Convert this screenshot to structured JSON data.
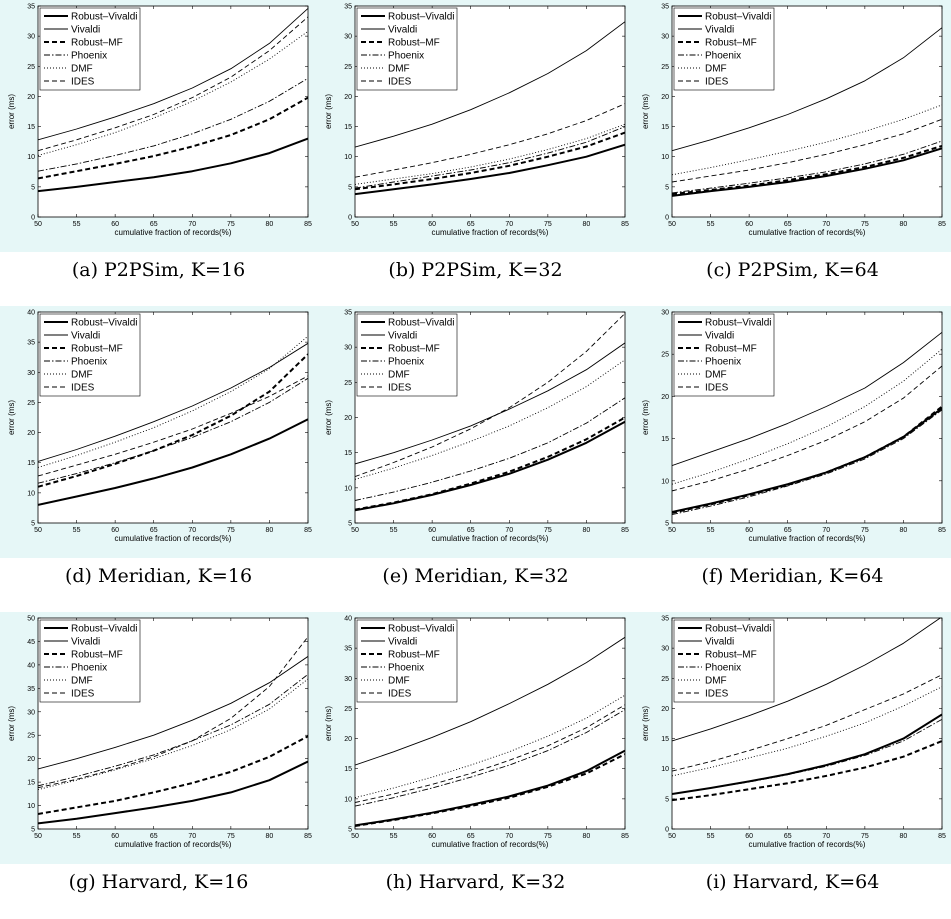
{
  "style": {
    "plot_background": "#e6f7f7",
    "axes_color": "#000000",
    "line_color": "#000000"
  },
  "series_styles": [
    {
      "name": "Robust–Vivaldi",
      "width": 2.0,
      "dash": "none"
    },
    {
      "name": "Vivaldi",
      "width": 0.9,
      "dash": "none"
    },
    {
      "name": "Robust–MF",
      "width": 2.0,
      "dash": "5,3"
    },
    {
      "name": "Phoenix",
      "width": 0.9,
      "dash": "6,2,1.5,2"
    },
    {
      "name": "DMF",
      "width": 0.9,
      "dash": "1,2"
    },
    {
      "name": "IDES",
      "width": 0.9,
      "dash": "5,3"
    }
  ],
  "chart_data": [
    {
      "type": "line",
      "caption": "(a) P2PSim, K=16",
      "xlabel": "cumulative fraction of records(%)",
      "ylabel": "error (ms)",
      "xlim": [
        50,
        85
      ],
      "ylim": [
        0,
        35
      ],
      "xticks": [
        50,
        55,
        60,
        65,
        70,
        75,
        80,
        85
      ],
      "yticks": [
        0,
        5,
        10,
        15,
        20,
        25,
        30,
        35
      ],
      "legend": "top-left",
      "x": [
        50,
        55,
        60,
        65,
        70,
        75,
        80,
        85
      ],
      "series": [
        {
          "name": "Robust–Vivaldi",
          "values": [
            4.3,
            5.0,
            5.8,
            6.6,
            7.6,
            8.9,
            10.6,
            13.0
          ]
        },
        {
          "name": "Vivaldi",
          "values": [
            12.8,
            14.6,
            16.6,
            18.8,
            21.4,
            24.6,
            28.8,
            34.6
          ]
        },
        {
          "name": "Robust–MF",
          "values": [
            6.4,
            7.6,
            8.8,
            10.1,
            11.7,
            13.6,
            16.2,
            19.8
          ]
        },
        {
          "name": "Phoenix",
          "values": [
            7.6,
            8.8,
            10.2,
            11.8,
            13.8,
            16.2,
            19.2,
            23.0
          ]
        },
        {
          "name": "DMF",
          "values": [
            10.2,
            12.0,
            14.0,
            16.4,
            19.2,
            22.4,
            26.2,
            30.8
          ]
        },
        {
          "name": "IDES",
          "values": [
            11.0,
            12.8,
            14.8,
            17.0,
            19.8,
            23.2,
            27.6,
            33.2
          ]
        }
      ]
    },
    {
      "type": "line",
      "caption": "(b) P2PSim, K=32",
      "xlabel": "cumulative fraction of records(%)",
      "ylabel": "error (ms)",
      "xlim": [
        50,
        85
      ],
      "ylim": [
        0,
        35
      ],
      "xticks": [
        50,
        55,
        60,
        65,
        70,
        75,
        80,
        85
      ],
      "yticks": [
        0,
        5,
        10,
        15,
        20,
        25,
        30,
        35
      ],
      "legend": "top-left",
      "x": [
        50,
        55,
        60,
        65,
        70,
        75,
        80,
        85
      ],
      "series": [
        {
          "name": "Robust–Vivaldi",
          "values": [
            3.8,
            4.6,
            5.4,
            6.3,
            7.3,
            8.6,
            10.0,
            12.0
          ]
        },
        {
          "name": "Vivaldi",
          "values": [
            11.6,
            13.4,
            15.4,
            17.8,
            20.6,
            23.8,
            27.6,
            32.4
          ]
        },
        {
          "name": "Robust–MF",
          "values": [
            4.6,
            5.4,
            6.3,
            7.3,
            8.5,
            10.0,
            11.7,
            14.0
          ]
        },
        {
          "name": "Phoenix",
          "values": [
            4.8,
            5.8,
            6.8,
            7.8,
            9.0,
            10.6,
            12.4,
            15.0
          ]
        },
        {
          "name": "DMF",
          "values": [
            5.4,
            6.3,
            7.2,
            8.3,
            9.6,
            11.2,
            13.0,
            15.4
          ]
        },
        {
          "name": "IDES",
          "values": [
            6.6,
            7.8,
            9.0,
            10.4,
            12.0,
            13.8,
            16.0,
            18.8
          ]
        }
      ]
    },
    {
      "type": "line",
      "caption": "(c) P2PSim, K=64",
      "xlabel": "cumulative fraction of records(%)",
      "ylabel": "error (ms)",
      "xlim": [
        50,
        85
      ],
      "ylim": [
        0,
        35
      ],
      "xticks": [
        50,
        55,
        60,
        65,
        70,
        75,
        80,
        85
      ],
      "yticks": [
        0,
        5,
        10,
        15,
        20,
        25,
        30,
        35
      ],
      "legend": "top-left",
      "x": [
        50,
        55,
        60,
        65,
        70,
        75,
        80,
        85
      ],
      "series": [
        {
          "name": "Robust–Vivaldi",
          "values": [
            3.5,
            4.3,
            5.0,
            5.8,
            6.8,
            8.0,
            9.4,
            11.4
          ]
        },
        {
          "name": "Vivaldi",
          "values": [
            11.0,
            12.8,
            14.8,
            17.0,
            19.6,
            22.6,
            26.4,
            31.4
          ]
        },
        {
          "name": "Robust–MF",
          "values": [
            3.8,
            4.5,
            5.2,
            6.1,
            7.1,
            8.3,
            9.8,
            11.8
          ]
        },
        {
          "name": "Phoenix",
          "values": [
            4.0,
            4.8,
            5.6,
            6.5,
            7.5,
            8.8,
            10.4,
            12.6
          ]
        },
        {
          "name": "DMF",
          "values": [
            7.0,
            8.2,
            9.5,
            10.9,
            12.4,
            14.2,
            16.2,
            18.6
          ]
        },
        {
          "name": "IDES",
          "values": [
            5.8,
            6.8,
            7.8,
            9.0,
            10.4,
            12.0,
            13.8,
            16.2
          ]
        }
      ]
    },
    {
      "type": "line",
      "caption": "(d) Meridian, K=16",
      "xlabel": "cumulative fraction of records(%)",
      "ylabel": "error (ms)",
      "xlim": [
        50,
        85
      ],
      "ylim": [
        5,
        40
      ],
      "xticks": [
        50,
        55,
        60,
        65,
        70,
        75,
        80,
        85
      ],
      "yticks": [
        5,
        10,
        15,
        20,
        25,
        30,
        35,
        40
      ],
      "legend": "top-left",
      "x": [
        50,
        55,
        60,
        65,
        70,
        75,
        80,
        85
      ],
      "series": [
        {
          "name": "Robust–Vivaldi",
          "values": [
            8.0,
            9.4,
            10.8,
            12.4,
            14.2,
            16.4,
            19.0,
            22.2
          ]
        },
        {
          "name": "Vivaldi",
          "values": [
            15.2,
            17.2,
            19.4,
            21.8,
            24.4,
            27.4,
            30.8,
            34.8
          ]
        },
        {
          "name": "Robust–MF",
          "values": [
            11.0,
            12.8,
            14.8,
            17.0,
            19.6,
            22.8,
            26.8,
            33.0
          ]
        },
        {
          "name": "Phoenix",
          "values": [
            11.6,
            13.2,
            15.0,
            17.0,
            19.2,
            21.8,
            25.0,
            29.0
          ]
        },
        {
          "name": "DMF",
          "values": [
            14.2,
            16.2,
            18.4,
            20.8,
            23.6,
            26.8,
            30.6,
            36.0
          ]
        },
        {
          "name": "IDES",
          "values": [
            12.8,
            14.6,
            16.4,
            18.4,
            20.6,
            23.2,
            26.0,
            29.4
          ]
        }
      ]
    },
    {
      "type": "line",
      "caption": "(e) Meridian, K=32",
      "xlabel": "cumulative fraction of records(%)",
      "ylabel": "error (ms)",
      "xlim": [
        50,
        85
      ],
      "ylim": [
        5,
        35
      ],
      "xticks": [
        50,
        55,
        60,
        65,
        70,
        75,
        80,
        85
      ],
      "yticks": [
        5,
        10,
        15,
        20,
        25,
        30,
        35
      ],
      "legend": "top-left",
      "x": [
        50,
        55,
        60,
        65,
        70,
        75,
        80,
        85
      ],
      "series": [
        {
          "name": "Robust–Vivaldi",
          "values": [
            6.8,
            7.8,
            9.0,
            10.4,
            12.0,
            14.0,
            16.4,
            19.4
          ]
        },
        {
          "name": "Vivaldi",
          "values": [
            13.4,
            15.0,
            16.8,
            18.8,
            21.2,
            23.8,
            26.8,
            30.6
          ]
        },
        {
          "name": "Robust–MF",
          "values": [
            6.9,
            7.9,
            9.1,
            10.6,
            12.3,
            14.4,
            16.9,
            20.0
          ]
        },
        {
          "name": "Phoenix",
          "values": [
            8.2,
            9.4,
            10.8,
            12.4,
            14.2,
            16.4,
            19.2,
            22.8
          ]
        },
        {
          "name": "DMF",
          "values": [
            11.2,
            12.8,
            14.6,
            16.6,
            18.8,
            21.4,
            24.4,
            28.2
          ]
        },
        {
          "name": "IDES",
          "values": [
            11.6,
            13.6,
            15.8,
            18.4,
            21.4,
            25.0,
            29.4,
            34.8
          ]
        }
      ]
    },
    {
      "type": "line",
      "caption": "(f) Meridian, K=64",
      "xlabel": "cumulative fraction of records(%)",
      "ylabel": "error (ms)",
      "xlim": [
        50,
        85
      ],
      "ylim": [
        5,
        30
      ],
      "xticks": [
        50,
        55,
        60,
        65,
        70,
        75,
        80,
        85
      ],
      "yticks": [
        5,
        10,
        15,
        20,
        25,
        30
      ],
      "legend": "top-left",
      "x": [
        50,
        55,
        60,
        65,
        70,
        75,
        80,
        85
      ],
      "series": [
        {
          "name": "Robust–Vivaldi",
          "values": [
            6.3,
            7.3,
            8.4,
            9.6,
            11.0,
            12.8,
            15.2,
            18.6
          ]
        },
        {
          "name": "Vivaldi",
          "values": [
            11.8,
            13.4,
            15.0,
            16.8,
            18.8,
            21.0,
            24.0,
            27.6
          ]
        },
        {
          "name": "Robust–MF",
          "values": [
            6.2,
            7.2,
            8.3,
            9.5,
            11.0,
            12.8,
            15.2,
            18.8
          ]
        },
        {
          "name": "Phoenix",
          "values": [
            6.0,
            7.0,
            8.1,
            9.4,
            10.8,
            12.6,
            15.0,
            18.4
          ]
        },
        {
          "name": "DMF",
          "values": [
            9.6,
            11.0,
            12.6,
            14.4,
            16.4,
            18.8,
            21.8,
            25.6
          ]
        },
        {
          "name": "IDES",
          "values": [
            8.8,
            10.0,
            11.4,
            13.0,
            14.8,
            17.0,
            19.8,
            23.6
          ]
        }
      ]
    },
    {
      "type": "line",
      "caption": "(g) Harvard, K=16",
      "xlabel": "cumulative fraction of records(%)",
      "ylabel": "error (ms)",
      "xlim": [
        50,
        85
      ],
      "ylim": [
        5,
        50
      ],
      "xticks": [
        50,
        55,
        60,
        65,
        70,
        75,
        80,
        85
      ],
      "yticks": [
        5,
        10,
        15,
        20,
        25,
        30,
        35,
        40,
        45,
        50
      ],
      "legend": "top-left",
      "x": [
        50,
        55,
        60,
        65,
        70,
        75,
        80,
        85
      ],
      "series": [
        {
          "name": "Robust–Vivaldi",
          "values": [
            6.2,
            7.2,
            8.4,
            9.6,
            11.0,
            12.8,
            15.4,
            19.4
          ]
        },
        {
          "name": "Vivaldi",
          "values": [
            17.8,
            20.0,
            22.4,
            25.0,
            28.2,
            31.8,
            36.2,
            41.8
          ]
        },
        {
          "name": "Robust–MF",
          "values": [
            8.2,
            9.6,
            11.0,
            12.8,
            14.8,
            17.2,
            20.4,
            24.8
          ]
        },
        {
          "name": "Phoenix",
          "values": [
            14.2,
            16.2,
            18.4,
            20.8,
            23.8,
            27.2,
            31.6,
            38.0
          ]
        },
        {
          "name": "DMF",
          "values": [
            13.4,
            15.4,
            17.6,
            20.0,
            22.8,
            26.2,
            30.6,
            37.0
          ]
        },
        {
          "name": "IDES",
          "values": [
            13.8,
            15.6,
            17.8,
            20.4,
            23.8,
            28.6,
            35.4,
            46.0
          ]
        }
      ]
    },
    {
      "type": "line",
      "caption": "(h) Harvard, K=32",
      "xlabel": "cumulative fraction of records(%)",
      "ylabel": "error (ms)",
      "xlim": [
        50,
        85
      ],
      "ylim": [
        5,
        40
      ],
      "xticks": [
        50,
        55,
        60,
        65,
        70,
        75,
        80,
        85
      ],
      "yticks": [
        5,
        10,
        15,
        20,
        25,
        30,
        35,
        40
      ],
      "legend": "top-left",
      "x": [
        50,
        55,
        60,
        65,
        70,
        75,
        80,
        85
      ],
      "series": [
        {
          "name": "Robust–Vivaldi",
          "values": [
            5.6,
            6.6,
            7.7,
            9.0,
            10.4,
            12.2,
            14.6,
            18.0
          ]
        },
        {
          "name": "Vivaldi",
          "values": [
            15.6,
            17.8,
            20.2,
            22.8,
            25.8,
            29.0,
            32.6,
            36.8
          ]
        },
        {
          "name": "Robust–MF",
          "values": [
            5.5,
            6.5,
            7.6,
            8.8,
            10.2,
            12.0,
            14.2,
            17.4
          ]
        },
        {
          "name": "Phoenix",
          "values": [
            8.8,
            10.2,
            11.8,
            13.6,
            15.6,
            18.0,
            21.0,
            24.8
          ]
        },
        {
          "name": "DMF",
          "values": [
            10.2,
            11.8,
            13.6,
            15.6,
            17.8,
            20.4,
            23.4,
            27.2
          ]
        },
        {
          "name": "IDES",
          "values": [
            9.4,
            10.8,
            12.4,
            14.2,
            16.4,
            18.8,
            21.8,
            25.6
          ]
        }
      ]
    },
    {
      "type": "line",
      "caption": "(i) Harvard, K=64",
      "xlabel": "cumulative fraction of records(%)",
      "ylabel": "error (ms)",
      "xlim": [
        50,
        85
      ],
      "ylim": [
        0,
        35
      ],
      "xticks": [
        50,
        55,
        60,
        65,
        70,
        75,
        80,
        85
      ],
      "yticks": [
        0,
        5,
        10,
        15,
        20,
        25,
        30,
        35
      ],
      "legend": "top-left",
      "x": [
        50,
        55,
        60,
        65,
        70,
        75,
        80,
        85
      ],
      "series": [
        {
          "name": "Robust–Vivaldi",
          "values": [
            5.8,
            6.8,
            7.9,
            9.1,
            10.6,
            12.4,
            15.0,
            19.0
          ]
        },
        {
          "name": "Vivaldi",
          "values": [
            14.6,
            16.6,
            18.8,
            21.2,
            24.0,
            27.2,
            30.8,
            35.2
          ]
        },
        {
          "name": "Robust–MF",
          "values": [
            4.8,
            5.6,
            6.6,
            7.6,
            8.8,
            10.2,
            12.0,
            14.6
          ]
        },
        {
          "name": "Phoenix",
          "values": [
            5.8,
            6.8,
            7.8,
            9.0,
            10.4,
            12.2,
            14.6,
            18.2
          ]
        },
        {
          "name": "DMF",
          "values": [
            8.8,
            10.2,
            11.8,
            13.4,
            15.4,
            17.6,
            20.4,
            23.6
          ]
        },
        {
          "name": "IDES",
          "values": [
            9.6,
            11.2,
            13.0,
            15.0,
            17.2,
            19.8,
            22.4,
            25.6
          ]
        }
      ]
    }
  ]
}
